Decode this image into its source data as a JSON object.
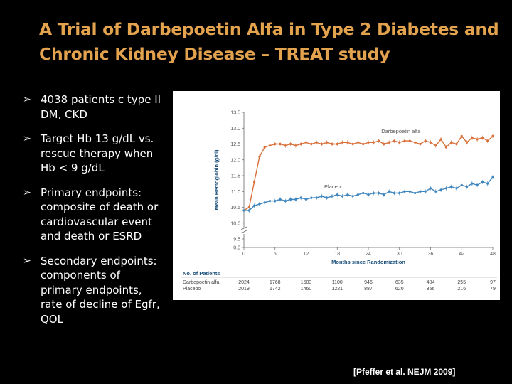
{
  "slide": {
    "title": "A Trial of Darbepoetin Alfa in Type 2 Diabetes and Chronic Kidney Disease – TREAT study",
    "bullets": [
      "4038 patients c type II DM, CKD",
      "Target Hb 13 g/dL vs. rescue therapy when Hb < 9 g/dL",
      "Primary endpoints: composite of death or cardiovascular event and death or ESRD",
      "Secondary endpoints: components of primary endpoints, rate of decline of Egfr, QOL"
    ],
    "citation": "[Pfeffer et al. NEJM 2009]"
  },
  "colors": {
    "title": "#E2A24E",
    "darbepoetin": "#D9703A",
    "placebo": "#3F86BF",
    "axis_title": "#1a4f7a"
  },
  "chart_data": {
    "type": "line",
    "xlabel": "Months since Randomization",
    "ylabel": "Mean Hemoglobin (g/dl)",
    "x_ticks": [
      "0",
      "6",
      "12",
      "18",
      "24",
      "30",
      "36",
      "42",
      "48"
    ],
    "y_ticks": [
      "0.0",
      "9.5",
      "10.0",
      "10.5",
      "11.0",
      "11.5",
      "12.0",
      "12.5",
      "13.0",
      "13.5"
    ],
    "xlim": [
      0,
      48
    ],
    "ylim": [
      9.5,
      13.5
    ],
    "axis_break": true,
    "series": [
      {
        "name": "Darbepoetin alfa",
        "x": [
          0,
          1,
          2,
          3,
          4,
          5,
          6,
          7,
          8,
          9,
          10,
          11,
          12,
          13,
          14,
          15,
          16,
          17,
          18,
          19,
          20,
          21,
          22,
          23,
          24,
          25,
          26,
          27,
          28,
          29,
          30,
          31,
          32,
          33,
          34,
          35,
          36,
          37,
          38,
          39,
          40,
          41,
          42,
          43,
          44,
          45,
          46,
          47,
          48
        ],
        "y": [
          10.4,
          10.5,
          11.3,
          12.1,
          12.4,
          12.45,
          12.5,
          12.5,
          12.45,
          12.5,
          12.45,
          12.5,
          12.55,
          12.5,
          12.55,
          12.5,
          12.55,
          12.5,
          12.5,
          12.55,
          12.55,
          12.5,
          12.55,
          12.5,
          12.55,
          12.55,
          12.6,
          12.5,
          12.55,
          12.6,
          12.55,
          12.6,
          12.6,
          12.55,
          12.5,
          12.6,
          12.55,
          12.45,
          12.65,
          12.4,
          12.55,
          12.5,
          12.75,
          12.55,
          12.7,
          12.65,
          12.7,
          12.6,
          12.75
        ]
      },
      {
        "name": "Placebo",
        "x": [
          0,
          1,
          2,
          3,
          4,
          5,
          6,
          7,
          8,
          9,
          10,
          11,
          12,
          13,
          14,
          15,
          16,
          17,
          18,
          19,
          20,
          21,
          22,
          23,
          24,
          25,
          26,
          27,
          28,
          29,
          30,
          31,
          32,
          33,
          34,
          35,
          36,
          37,
          38,
          39,
          40,
          41,
          42,
          43,
          44,
          45,
          46,
          47,
          48
        ],
        "y": [
          10.4,
          10.4,
          10.55,
          10.6,
          10.65,
          10.7,
          10.7,
          10.75,
          10.7,
          10.75,
          10.75,
          10.8,
          10.75,
          10.8,
          10.8,
          10.85,
          10.8,
          10.85,
          10.9,
          10.85,
          10.9,
          10.85,
          10.9,
          10.95,
          10.9,
          10.95,
          10.95,
          10.9,
          11.0,
          10.95,
          10.95,
          11.0,
          11.0,
          10.95,
          11.0,
          11.0,
          11.1,
          11.0,
          11.05,
          11.1,
          11.15,
          11.1,
          11.2,
          11.15,
          11.25,
          11.2,
          11.3,
          11.25,
          11.45
        ]
      }
    ],
    "patients_table": {
      "header": "No. of Patients",
      "months": [
        "0",
        "6",
        "12",
        "18",
        "24",
        "30",
        "36",
        "42",
        "48"
      ],
      "rows": [
        {
          "label": "Darbepoetin alfa",
          "values": [
            "2024",
            "1768",
            "1503",
            "1100",
            "946",
            "635",
            "404",
            "255",
            "97"
          ]
        },
        {
          "label": "Placebo",
          "values": [
            "2019",
            "1742",
            "1460",
            "1221",
            "887",
            "620",
            "356",
            "216",
            "79"
          ]
        }
      ]
    }
  }
}
